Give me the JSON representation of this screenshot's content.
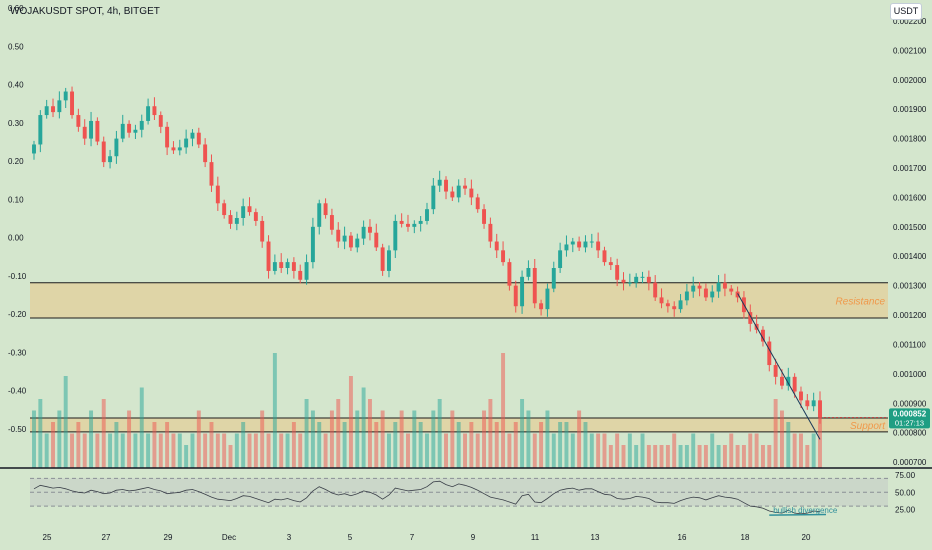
{
  "header": {
    "title": "WOJAKUSDT SPOT, 4h, BITGET",
    "unit_button": "USDT"
  },
  "price_badge": {
    "price": "0.000852",
    "countdown": "01:27:13"
  },
  "colors": {
    "background": "#d4e6cd",
    "up": "#26a69a",
    "down": "#ef5350",
    "zone": "#e8c689"
  },
  "chart_data": [
    {
      "type": "candlestick",
      "y_axis_left": {
        "ticks": [
          "0.60",
          "0.50",
          "0.40",
          "0.30",
          "0.20",
          "0.10",
          "0.00",
          "-0.10",
          "-0.20",
          "-0.30",
          "-0.40",
          "-0.50"
        ]
      },
      "y_axis_right": {
        "ticks": [
          "0.002200",
          "0.002100",
          "0.002000",
          "0.001900",
          "0.001800",
          "0.001700",
          "0.001600",
          "0.001500",
          "0.001400",
          "0.001300",
          "0.001200",
          "0.001100",
          "0.001000",
          "0.000900",
          "0.000800",
          "0.000700"
        ],
        "range": [
          0.00068,
          0.00221
        ]
      },
      "x_axis": {
        "ticks": [
          "25",
          "27",
          "29",
          "Dec",
          "3",
          "5",
          "7",
          "9",
          "11",
          "13",
          "16",
          "18",
          "20"
        ]
      },
      "candles_close": [
        0.00178,
        0.00188,
        0.00191,
        0.00189,
        0.00193,
        0.00196,
        0.00188,
        0.00184,
        0.0018,
        0.00186,
        0.00179,
        0.00172,
        0.00174,
        0.0018,
        0.00185,
        0.00182,
        0.00183,
        0.00186,
        0.00191,
        0.00188,
        0.00184,
        0.00177,
        0.00176,
        0.00177,
        0.0018,
        0.00182,
        0.00178,
        0.00172,
        0.00164,
        0.00158,
        0.00154,
        0.00151,
        0.00153,
        0.00157,
        0.00155,
        0.00152,
        0.00145,
        0.00135,
        0.00138,
        0.00136,
        0.00138,
        0.00135,
        0.00132,
        0.00138,
        0.0015,
        0.00158,
        0.00154,
        0.00149,
        0.00145,
        0.00147,
        0.00143,
        0.00146,
        0.0015,
        0.00148,
        0.00143,
        0.00135,
        0.00142,
        0.00152,
        0.00151,
        0.0015,
        0.00151,
        0.00152,
        0.00156,
        0.00164,
        0.00166,
        0.00162,
        0.0016,
        0.00164,
        0.00163,
        0.0016,
        0.00156,
        0.00151,
        0.00145,
        0.00142,
        0.00138,
        0.0013,
        0.00123,
        0.00133,
        0.00136,
        0.00124,
        0.00122,
        0.00129,
        0.00136,
        0.00142,
        0.00144,
        0.00145,
        0.00143,
        0.00145,
        0.00145,
        0.00142,
        0.00138,
        0.00137,
        0.00132,
        0.00131,
        0.00131,
        0.00133,
        0.00133,
        0.00131,
        0.00126,
        0.00124,
        0.00123,
        0.00122,
        0.00125,
        0.00128,
        0.0013,
        0.00129,
        0.00126,
        0.00128,
        0.00131,
        0.00129,
        0.00128,
        0.00126,
        0.00121,
        0.00117,
        0.00115,
        0.00111,
        0.00103,
        0.00099,
        0.00096,
        0.00099,
        0.00094,
        0.00091,
        0.00089,
        0.00091,
        0.000852
      ],
      "volume_relative": [
        0.5,
        0.6,
        0.3,
        0.4,
        0.5,
        0.8,
        0.3,
        0.4,
        0.3,
        0.5,
        0.3,
        0.6,
        0.3,
        0.4,
        0.3,
        0.5,
        0.3,
        0.7,
        0.3,
        0.4,
        0.3,
        0.4,
        0.3,
        0.3,
        0.2,
        0.3,
        0.5,
        0.3,
        0.4,
        0.3,
        0.3,
        0.2,
        0.3,
        0.4,
        0.3,
        0.3,
        0.5,
        0.3,
        1.0,
        0.3,
        0.3,
        0.4,
        0.3,
        0.6,
        0.5,
        0.4,
        0.3,
        0.5,
        0.6,
        0.4,
        0.8,
        0.5,
        0.7,
        0.6,
        0.4,
        0.5,
        0.3,
        0.4,
        0.5,
        0.3,
        0.5,
        0.4,
        0.3,
        0.5,
        0.6,
        0.3,
        0.5,
        0.4,
        0.3,
        0.4,
        0.3,
        0.5,
        0.6,
        0.4,
        1.0,
        0.3,
        0.4,
        0.6,
        0.5,
        0.3,
        0.4,
        0.5,
        0.3,
        0.4,
        0.4,
        0.3,
        0.5,
        0.4,
        0.3,
        0.3,
        0.3,
        0.2,
        0.3,
        0.2,
        0.3,
        0.2,
        0.3,
        0.2,
        0.2,
        0.2,
        0.2,
        0.3,
        0.2,
        0.2,
        0.3,
        0.2,
        0.2,
        0.3,
        0.2,
        0.2,
        0.3,
        0.2,
        0.2,
        0.3,
        0.3,
        0.2,
        0.2,
        0.6,
        0.5,
        0.4,
        0.3,
        0.3,
        0.2,
        0.3,
        0.5
      ],
      "zones": [
        {
          "label": "Resistance",
          "from": 0.00119,
          "to": 0.00131
        },
        {
          "label": "Support",
          "from": 0.000803,
          "to": 0.00085
        }
      ]
    },
    {
      "type": "line",
      "indicator": "RSI",
      "y_ticks": [
        "75.00",
        "50.00",
        "25.00"
      ],
      "y_range": [
        10,
        85
      ],
      "levels": [
        70,
        50,
        30
      ],
      "values": [
        55,
        60,
        58,
        56,
        57,
        55,
        52,
        50,
        49,
        53,
        51,
        48,
        49,
        53,
        54,
        52,
        53,
        55,
        57,
        54,
        52,
        48,
        49,
        50,
        53,
        54,
        51,
        47,
        43,
        40,
        39,
        38,
        41,
        45,
        44,
        41,
        38,
        35,
        40,
        39,
        41,
        38,
        36,
        42,
        52,
        58,
        54,
        49,
        46,
        48,
        45,
        48,
        52,
        50,
        46,
        40,
        46,
        56,
        54,
        52,
        53,
        54,
        58,
        65,
        66,
        61,
        58,
        62,
        60,
        57,
        53,
        48,
        43,
        41,
        39,
        36,
        33,
        45,
        47,
        36,
        35,
        41,
        48,
        53,
        55,
        56,
        53,
        55,
        55,
        51,
        47,
        46,
        41,
        40,
        41,
        44,
        43,
        41,
        36,
        35,
        35,
        34,
        38,
        41,
        43,
        42,
        39,
        42,
        45,
        43,
        42,
        40,
        35,
        30,
        29,
        27,
        23,
        21,
        20,
        24,
        20,
        19,
        20,
        23,
        22
      ],
      "annotations": [
        "bullish divergence"
      ]
    }
  ]
}
